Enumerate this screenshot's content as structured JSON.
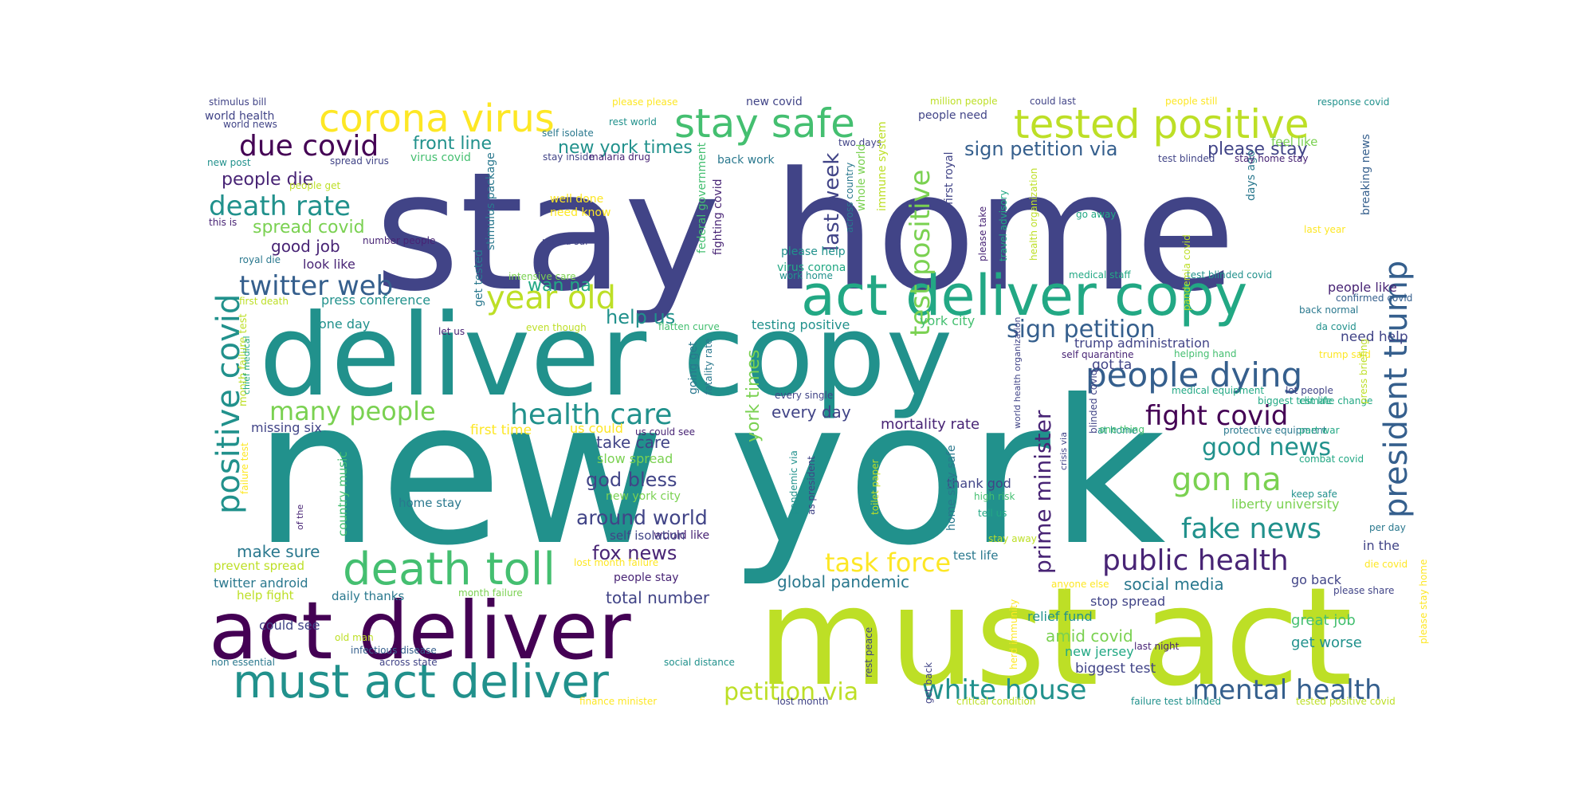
{
  "colors": {
    "dark_purple": "#440154",
    "purple": "#482475",
    "indigo": "#414487",
    "blue": "#355f8d",
    "steel": "#2a788e",
    "teal": "#21918c",
    "green_teal": "#22a884",
    "green": "#44bf70",
    "lime": "#7ad151",
    "yellow_green": "#bddf26",
    "yellow": "#fde725"
  },
  "words": [
    {
      "text": "new york",
      "color": "teal"
    },
    {
      "text": "stay home",
      "color": "indigo"
    },
    {
      "text": "must act",
      "color": "yellow_green"
    },
    {
      "text": "deliver copy",
      "color": "teal"
    },
    {
      "text": "act deliver",
      "color": "dark_purple"
    },
    {
      "text": "act deliver copy",
      "color": "green_teal"
    },
    {
      "text": "must act deliver",
      "color": "teal"
    },
    {
      "text": "death toll",
      "color": "green"
    },
    {
      "text": "stay safe",
      "color": "green"
    },
    {
      "text": "tested positive",
      "color": "yellow_green"
    },
    {
      "text": "corona virus",
      "color": "yellow"
    },
    {
      "text": "positive covid",
      "color": "teal"
    },
    {
      "text": "president trump",
      "color": "blue"
    },
    {
      "text": "people dying",
      "color": "blue"
    },
    {
      "text": "gon na",
      "color": "lime"
    },
    {
      "text": "public health",
      "color": "purple"
    },
    {
      "text": "year old",
      "color": "yellow_green"
    },
    {
      "text": "health care",
      "color": "teal"
    },
    {
      "text": "twitter web",
      "color": "blue"
    },
    {
      "text": "due covid",
      "color": "dark_purple"
    },
    {
      "text": "death rate",
      "color": "teal"
    },
    {
      "text": "many people",
      "color": "lime"
    },
    {
      "text": "fake news",
      "color": "teal"
    },
    {
      "text": "white house",
      "color": "teal"
    },
    {
      "text": "mental health",
      "color": "blue"
    },
    {
      "text": "petition via",
      "color": "yellow_green"
    },
    {
      "text": "task force",
      "color": "yellow"
    },
    {
      "text": "fight covid",
      "color": "dark_purple"
    },
    {
      "text": "sign petition",
      "color": "blue"
    },
    {
      "text": "good news",
      "color": "teal"
    },
    {
      "text": "prime minister",
      "color": "purple"
    },
    {
      "text": "test positive",
      "color": "lime"
    },
    {
      "text": "sign petition via",
      "color": "blue"
    },
    {
      "text": "last week",
      "color": "indigo"
    },
    {
      "text": "front line",
      "color": "teal"
    },
    {
      "text": "new york times",
      "color": "teal"
    },
    {
      "text": "please stay",
      "color": "indigo"
    },
    {
      "text": "people die",
      "color": "purple"
    },
    {
      "text": "spread covid",
      "color": "lime"
    },
    {
      "text": "good job",
      "color": "purple"
    },
    {
      "text": "around world",
      "color": "indigo"
    },
    {
      "text": "fox news",
      "color": "purple"
    },
    {
      "text": "god bless",
      "color": "indigo"
    },
    {
      "text": "help us",
      "color": "teal"
    },
    {
      "text": "wan na",
      "color": "green_teal"
    },
    {
      "text": "york times",
      "color": "lime"
    },
    {
      "text": "take care",
      "color": "indigo"
    },
    {
      "text": "every day",
      "color": "indigo"
    },
    {
      "text": "make sure",
      "color": "steel"
    },
    {
      "text": "social media",
      "color": "steel"
    },
    {
      "text": "global pandemic",
      "color": "steel"
    },
    {
      "text": "amid covid",
      "color": "lime"
    },
    {
      "text": "total number",
      "color": "indigo"
    },
    {
      "text": "mortality rate",
      "color": "purple"
    },
    {
      "text": "people like",
      "color": "purple"
    },
    {
      "text": "testing positive",
      "color": "teal"
    },
    {
      "text": "york city",
      "color": "green"
    },
    {
      "text": "twitter android",
      "color": "steel"
    },
    {
      "text": "stop spread",
      "color": "indigo"
    },
    {
      "text": "relief fund",
      "color": "teal"
    },
    {
      "text": "great job",
      "color": "green"
    },
    {
      "text": "get worse",
      "color": "teal"
    },
    {
      "text": "biggest test",
      "color": "indigo"
    },
    {
      "text": "new jersey",
      "color": "green_teal"
    },
    {
      "text": "thank god",
      "color": "indigo"
    },
    {
      "text": "go back",
      "color": "indigo"
    },
    {
      "text": "in the",
      "color": "indigo"
    },
    {
      "text": "liberty university",
      "color": "lime"
    },
    {
      "text": "got ta",
      "color": "indigo"
    },
    {
      "text": "need help",
      "color": "indigo"
    },
    {
      "text": "trump administration",
      "color": "indigo"
    },
    {
      "text": "first time",
      "color": "yellow"
    },
    {
      "text": "us could",
      "color": "yellow"
    },
    {
      "text": "slow spread",
      "color": "lime"
    },
    {
      "text": "look like",
      "color": "purple"
    },
    {
      "text": "press conference",
      "color": "teal"
    },
    {
      "text": "one day",
      "color": "teal"
    },
    {
      "text": "missing six",
      "color": "indigo"
    },
    {
      "text": "could see",
      "color": "indigo"
    },
    {
      "text": "prevent spread",
      "color": "yellow_green"
    },
    {
      "text": "help fight",
      "color": "yellow_green"
    },
    {
      "text": "daily thanks",
      "color": "steel"
    },
    {
      "text": "home stay",
      "color": "steel"
    },
    {
      "text": "country music",
      "color": "green"
    },
    {
      "text": "test life",
      "color": "steel"
    },
    {
      "text": "would like",
      "color": "purple"
    },
    {
      "text": "new york city",
      "color": "lime"
    },
    {
      "text": "people stay",
      "color": "purple"
    },
    {
      "text": "self isolation",
      "color": "indigo"
    },
    {
      "text": "new covid",
      "color": "indigo"
    },
    {
      "text": "back work",
      "color": "steel"
    },
    {
      "text": "virus covid",
      "color": "green"
    },
    {
      "text": "people need",
      "color": "indigo"
    },
    {
      "text": "feel like",
      "color": "lime"
    },
    {
      "text": "well done",
      "color": "yellow"
    },
    {
      "text": "need know",
      "color": "yellow"
    },
    {
      "text": "virus corona",
      "color": "green_teal"
    },
    {
      "text": "please help",
      "color": "teal"
    },
    {
      "text": "world health",
      "color": "indigo"
    },
    {
      "text": "days ago",
      "color": "steel"
    },
    {
      "text": "breaking news",
      "color": "blue"
    },
    {
      "text": "intensive care",
      "color": "lime"
    },
    {
      "text": "federal government",
      "color": "green"
    },
    {
      "text": "stimulus bill",
      "color": "indigo"
    },
    {
      "text": "world news",
      "color": "indigo"
    },
    {
      "text": "please please",
      "color": "yellow"
    },
    {
      "text": "rest world",
      "color": "teal"
    },
    {
      "text": "self isolate",
      "color": "steel"
    },
    {
      "text": "stay inside",
      "color": "indigo"
    },
    {
      "text": "malaria drug",
      "color": "purple"
    },
    {
      "text": "two days",
      "color": "indigo"
    },
    {
      "text": "million people",
      "color": "yellow_green"
    },
    {
      "text": "could last",
      "color": "indigo"
    },
    {
      "text": "people still",
      "color": "yellow"
    },
    {
      "text": "response covid",
      "color": "teal"
    },
    {
      "text": "new post",
      "color": "teal"
    },
    {
      "text": "spread virus",
      "color": "indigo"
    },
    {
      "text": "people get",
      "color": "yellow_green"
    },
    {
      "text": "this is",
      "color": "purple"
    },
    {
      "text": "number people",
      "color": "purple"
    },
    {
      "text": "royal die",
      "color": "steel"
    },
    {
      "text": "first death",
      "color": "yellow_green"
    },
    {
      "text": "retard sur",
      "color": "indigo"
    },
    {
      "text": "work home",
      "color": "teal"
    },
    {
      "text": "go away",
      "color": "green_teal"
    },
    {
      "text": "last year",
      "color": "yellow"
    },
    {
      "text": "medical staff",
      "color": "green_teal"
    },
    {
      "text": "test blinded covid",
      "color": "teal"
    },
    {
      "text": "test blinded",
      "color": "indigo"
    },
    {
      "text": "stay home stay",
      "color": "purple"
    },
    {
      "text": "confirmed covid",
      "color": "blue"
    },
    {
      "text": "back normal",
      "color": "steel"
    },
    {
      "text": "da covid",
      "color": "teal"
    },
    {
      "text": "trump said",
      "color": "yellow"
    },
    {
      "text": "helping hand",
      "color": "green"
    },
    {
      "text": "self quarantine",
      "color": "purple"
    },
    {
      "text": "medical equipment",
      "color": "green_teal"
    },
    {
      "text": "lot people",
      "color": "indigo"
    },
    {
      "text": "blinded covid",
      "color": "indigo"
    },
    {
      "text": "biggest test life",
      "color": "green_teal"
    },
    {
      "text": "climate change",
      "color": "green_teal"
    },
    {
      "text": "press briefing",
      "color": "yellow_green"
    },
    {
      "text": "at home",
      "color": "teal"
    },
    {
      "text": "protective equipment",
      "color": "steel"
    },
    {
      "text": "part war",
      "color": "green_teal"
    },
    {
      "text": "one thing",
      "color": "green"
    },
    {
      "text": "combat covid",
      "color": "green_teal"
    },
    {
      "text": "keep safe",
      "color": "teal"
    },
    {
      "text": "high risk",
      "color": "green"
    },
    {
      "text": "tell us",
      "color": "green_teal"
    },
    {
      "text": "stay away",
      "color": "yellow_green"
    },
    {
      "text": "per day",
      "color": "steel"
    },
    {
      "text": "die covid",
      "color": "yellow"
    },
    {
      "text": "please share",
      "color": "indigo"
    },
    {
      "text": "anyone else",
      "color": "yellow"
    },
    {
      "text": "last night",
      "color": "purple"
    },
    {
      "text": "month failure",
      "color": "lime"
    },
    {
      "text": "lost month failure",
      "color": "yellow"
    },
    {
      "text": "us could see",
      "color": "purple"
    },
    {
      "text": "let us",
      "color": "purple"
    },
    {
      "text": "even though",
      "color": "yellow_green"
    },
    {
      "text": "flatten curve",
      "color": "green"
    },
    {
      "text": "every single",
      "color": "indigo"
    },
    {
      "text": "old man",
      "color": "yellow_green"
    },
    {
      "text": "infectious disease",
      "color": "blue"
    },
    {
      "text": "non essential",
      "color": "steel"
    },
    {
      "text": "across state",
      "color": "indigo"
    },
    {
      "text": "social distance",
      "color": "teal"
    },
    {
      "text": "finance minister",
      "color": "yellow"
    },
    {
      "text": "lost month",
      "color": "indigo"
    },
    {
      "text": "critical condition",
      "color": "yellow_green"
    },
    {
      "text": "failure test blinded",
      "color": "teal"
    },
    {
      "text": "tested positive covid",
      "color": "yellow_green"
    },
    {
      "text": "please stay home",
      "color": "yellow"
    },
    {
      "text": "get tested",
      "color": "steel"
    },
    {
      "text": "stimulus package",
      "color": "steel"
    },
    {
      "text": "fighting covid",
      "color": "purple"
    },
    {
      "text": "across country",
      "color": "steel"
    },
    {
      "text": "whole world",
      "color": "lime"
    },
    {
      "text": "immune system",
      "color": "yellow_green"
    },
    {
      "text": "first royal",
      "color": "indigo"
    },
    {
      "text": "please take",
      "color": "purple"
    },
    {
      "text": "travel advisory",
      "color": "green_teal"
    },
    {
      "text": "health organization",
      "color": "yellow_green"
    },
    {
      "text": "pandemia covid",
      "color": "yellow_green"
    },
    {
      "text": "month failure test",
      "color": "yellow_green"
    },
    {
      "text": "chief medical",
      "color": "green_teal"
    },
    {
      "text": "failure test",
      "color": "yellow"
    },
    {
      "text": "of the",
      "color": "purple"
    },
    {
      "text": "going get",
      "color": "steel"
    },
    {
      "text": "fatality rate",
      "color": "steel"
    },
    {
      "text": "pandemic via",
      "color": "teal"
    },
    {
      "text": "as president",
      "color": "indigo"
    },
    {
      "text": "toilet paper",
      "color": "yellow_green"
    },
    {
      "text": "home stay safe",
      "color": "steel"
    },
    {
      "text": "world health organization",
      "color": "indigo"
    },
    {
      "text": "crisis via",
      "color": "indigo"
    },
    {
      "text": "rest peace",
      "color": "indigo"
    },
    {
      "text": "get back",
      "color": "indigo"
    },
    {
      "text": "herd immunity",
      "color": "yellow"
    }
  ]
}
